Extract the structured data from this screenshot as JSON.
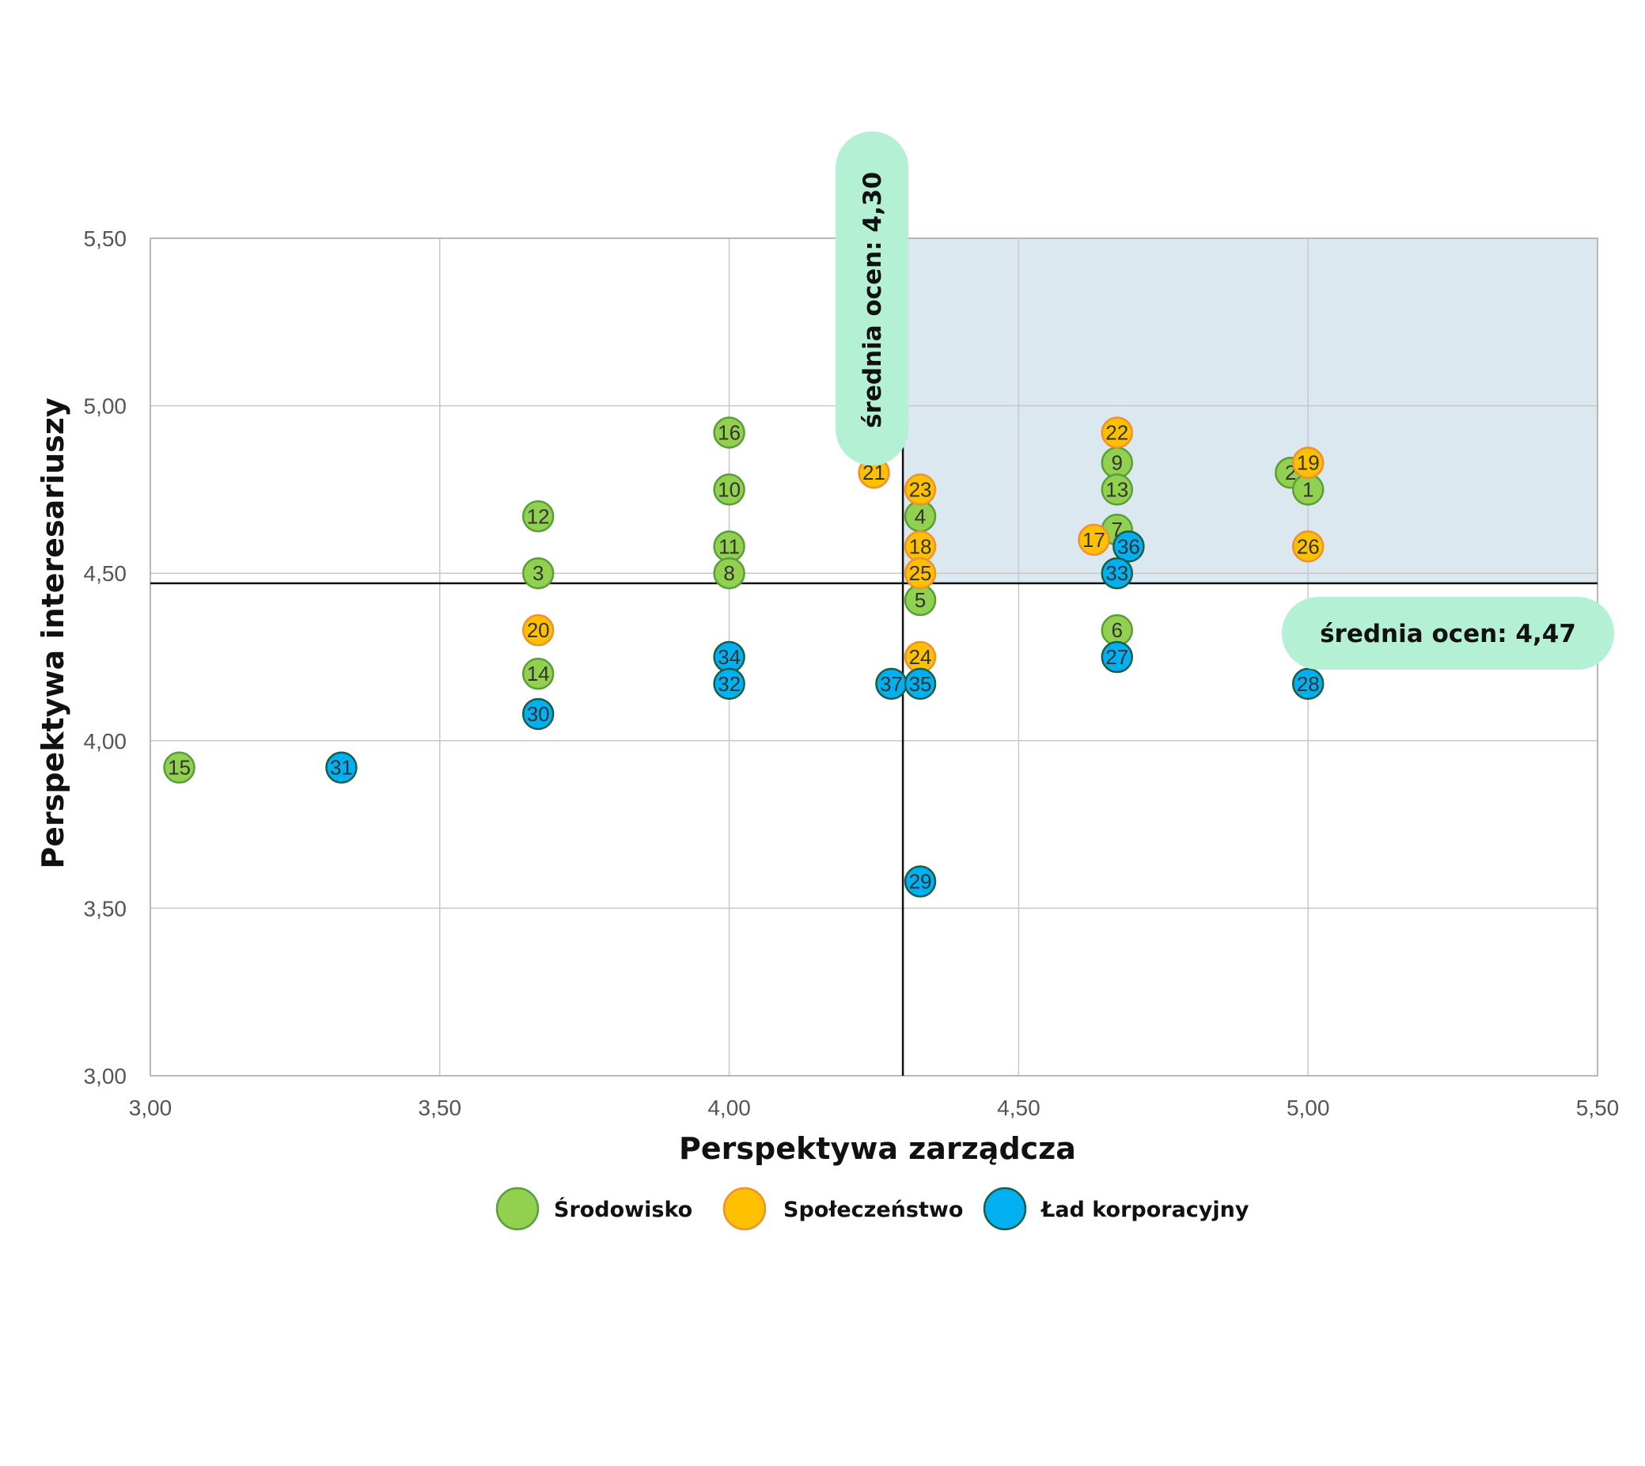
{
  "chart_data": {
    "type": "scatter",
    "xlabel": "Perspektywa zarządcza",
    "ylabel": "Perspektywa interesariuszy",
    "xlim": [
      3.0,
      5.5
    ],
    "ylim": [
      3.0,
      5.5
    ],
    "xticks": [
      "3,00",
      "3,50",
      "4,00",
      "4,50",
      "5,00",
      "5,50"
    ],
    "yticks": [
      "3,00",
      "3,50",
      "4,00",
      "4,50",
      "5,00",
      "5,50"
    ],
    "xtick_values": [
      3.0,
      3.5,
      4.0,
      4.5,
      5.0,
      5.5
    ],
    "ytick_values": [
      3.0,
      3.5,
      4.0,
      4.5,
      5.0,
      5.5
    ],
    "grid": true,
    "avg_x": 4.3,
    "avg_y": 4.47,
    "avg_x_label": "średnia ocen: 4,30",
    "avg_y_label": "średnia ocen: 4,47",
    "highlight_quadrant": "top-right",
    "legend_position": "bottom",
    "series": [
      {
        "name": "Środowisko",
        "fill": "#92d050",
        "stroke": "#5a9e3a",
        "points": [
          {
            "label": "15",
            "x": 3.05,
            "y": 3.92
          },
          {
            "label": "12",
            "x": 3.67,
            "y": 4.67
          },
          {
            "label": "3",
            "x": 3.67,
            "y": 4.5
          },
          {
            "label": "14",
            "x": 3.67,
            "y": 4.2
          },
          {
            "label": "16",
            "x": 4.0,
            "y": 4.92
          },
          {
            "label": "10",
            "x": 4.0,
            "y": 4.75
          },
          {
            "label": "11",
            "x": 4.0,
            "y": 4.58
          },
          {
            "label": "8",
            "x": 4.0,
            "y": 4.5
          },
          {
            "label": "4",
            "x": 4.33,
            "y": 4.67
          },
          {
            "label": "5",
            "x": 4.33,
            "y": 4.42
          },
          {
            "label": "9",
            "x": 4.67,
            "y": 4.83
          },
          {
            "label": "13",
            "x": 4.67,
            "y": 4.75
          },
          {
            "label": "7",
            "x": 4.67,
            "y": 4.63
          },
          {
            "label": "6",
            "x": 4.67,
            "y": 4.33
          },
          {
            "label": "2",
            "x": 4.97,
            "y": 4.8
          },
          {
            "label": "1",
            "x": 5.0,
            "y": 4.75
          }
        ]
      },
      {
        "name": "Społeczeństwo",
        "fill": "#ffc000",
        "stroke": "#f09030",
        "points": [
          {
            "label": "20",
            "x": 3.67,
            "y": 4.33
          },
          {
            "label": "21",
            "x": 4.25,
            "y": 4.8
          },
          {
            "label": "23",
            "x": 4.33,
            "y": 4.75
          },
          {
            "label": "18",
            "x": 4.33,
            "y": 4.58
          },
          {
            "label": "25",
            "x": 4.33,
            "y": 4.5
          },
          {
            "label": "24",
            "x": 4.33,
            "y": 4.25
          },
          {
            "label": "22",
            "x": 4.67,
            "y": 4.92
          },
          {
            "label": "17",
            "x": 4.63,
            "y": 4.6
          },
          {
            "label": "19",
            "x": 5.0,
            "y": 4.83
          },
          {
            "label": "26",
            "x": 5.0,
            "y": 4.58
          }
        ]
      },
      {
        "name": "Ład korporacyjny",
        "fill": "#00b0f0",
        "stroke": "#1a5e48",
        "points": [
          {
            "label": "31",
            "x": 3.33,
            "y": 3.92
          },
          {
            "label": "30",
            "x": 3.67,
            "y": 4.08
          },
          {
            "label": "34",
            "x": 4.0,
            "y": 4.25
          },
          {
            "label": "32",
            "x": 4.0,
            "y": 4.17
          },
          {
            "label": "37",
            "x": 4.28,
            "y": 4.17
          },
          {
            "label": "35",
            "x": 4.33,
            "y": 4.17
          },
          {
            "label": "29",
            "x": 4.33,
            "y": 3.58
          },
          {
            "label": "36",
            "x": 4.69,
            "y": 4.58
          },
          {
            "label": "33",
            "x": 4.67,
            "y": 4.5
          },
          {
            "label": "27",
            "x": 4.67,
            "y": 4.25
          },
          {
            "label": "28",
            "x": 5.0,
            "y": 4.17
          }
        ]
      }
    ]
  },
  "colors": {
    "highlight": "#dce8f0",
    "avg_badge": "#b4f0d4",
    "grid": "#c8c8c8",
    "avg_line": "#111111"
  }
}
